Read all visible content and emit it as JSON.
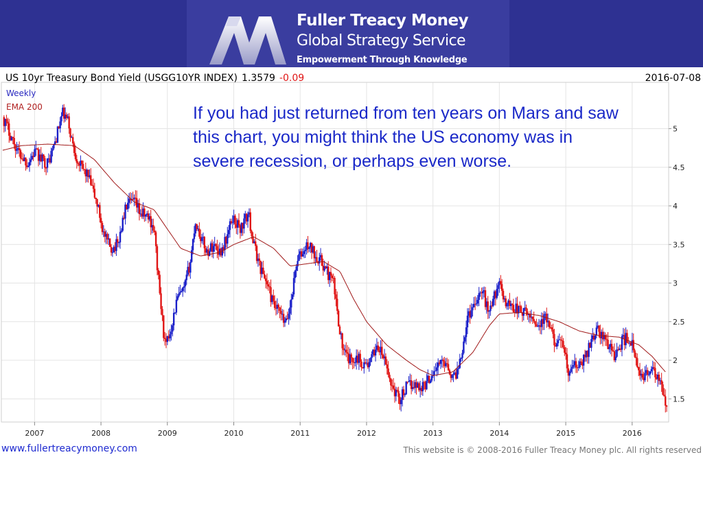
{
  "banner": {
    "brand_name": "Fuller Treacy Money",
    "service_name": "Global Strategy Service",
    "tagline": "Empowerment Through Knowledge",
    "logo_icon": "fuller-treacy-m-logo",
    "colors": {
      "background": "#2e3192",
      "panel": "#3a3d9f",
      "text": "#ffffff"
    }
  },
  "chart_header": {
    "instrument": "US 10yr Treasury Bond Yield (USGG10YR INDEX)",
    "last_value": "1.3579",
    "change": "-0.09",
    "date": "2016-07-08"
  },
  "annotation": "If you had just returned from ten years on Mars and saw this chart, you might think the US economy was in severe recession, or perhaps even worse.",
  "footer": {
    "website": "www.fullertreacymoney.com",
    "copyright": "This website is © 2008-2016 Fuller Treacy Money plc. All rights reserved"
  },
  "chart_data": {
    "type": "line",
    "style": "weekly candlesticks",
    "title": "US 10yr Treasury Bond Yield (USGG10YR INDEX)",
    "legend": [
      "Weekly",
      "EMA 200"
    ],
    "legend_position": "top-left",
    "xlabel": "",
    "ylabel": "",
    "x_ticks": [
      "2007",
      "2008",
      "2009",
      "2010",
      "2011",
      "2012",
      "2013",
      "2014",
      "2015",
      "2016"
    ],
    "y_ticks": [
      "1.5",
      "2",
      "2.5",
      "3",
      "3.5",
      "4",
      "4.5",
      "5"
    ],
    "xlim": [
      2006.5,
      2016.55
    ],
    "ylim": [
      1.2,
      5.6
    ],
    "grid": true,
    "colors": {
      "up": "#1a1fc9",
      "down": "#e01414",
      "ema": "#a01818",
      "grid": "#e4e4e4"
    },
    "price_anchors": [
      [
        2006.52,
        5.15
      ],
      [
        2006.6,
        5.0
      ],
      [
        2006.75,
        4.7
      ],
      [
        2006.9,
        4.55
      ],
      [
        2007.0,
        4.7
      ],
      [
        2007.1,
        4.6
      ],
      [
        2007.2,
        4.55
      ],
      [
        2007.3,
        4.8
      ],
      [
        2007.42,
        5.2
      ],
      [
        2007.5,
        5.1
      ],
      [
        2007.6,
        4.7
      ],
      [
        2007.7,
        4.5
      ],
      [
        2007.8,
        4.4
      ],
      [
        2007.95,
        4.0
      ],
      [
        2008.05,
        3.6
      ],
      [
        2008.15,
        3.45
      ],
      [
        2008.25,
        3.5
      ],
      [
        2008.38,
        4.0
      ],
      [
        2008.5,
        4.05
      ],
      [
        2008.6,
        3.9
      ],
      [
        2008.72,
        3.85
      ],
      [
        2008.8,
        3.7
      ],
      [
        2008.87,
        3.0
      ],
      [
        2008.92,
        2.55
      ],
      [
        2008.97,
        2.15
      ],
      [
        2009.05,
        2.4
      ],
      [
        2009.15,
        2.8
      ],
      [
        2009.25,
        2.9
      ],
      [
        2009.35,
        3.3
      ],
      [
        2009.42,
        3.8
      ],
      [
        2009.5,
        3.6
      ],
      [
        2009.6,
        3.4
      ],
      [
        2009.7,
        3.5
      ],
      [
        2009.8,
        3.4
      ],
      [
        2009.9,
        3.6
      ],
      [
        2009.98,
        3.85
      ],
      [
        2010.1,
        3.7
      ],
      [
        2010.22,
        3.9
      ],
      [
        2010.3,
        3.5
      ],
      [
        2010.4,
        3.2
      ],
      [
        2010.5,
        3.0
      ],
      [
        2010.6,
        2.7
      ],
      [
        2010.7,
        2.6
      ],
      [
        2010.78,
        2.45
      ],
      [
        2010.85,
        2.7
      ],
      [
        2010.95,
        3.3
      ],
      [
        2011.05,
        3.4
      ],
      [
        2011.12,
        3.5
      ],
      [
        2011.2,
        3.4
      ],
      [
        2011.3,
        3.3
      ],
      [
        2011.4,
        3.15
      ],
      [
        2011.5,
        3.0
      ],
      [
        2011.58,
        2.5
      ],
      [
        2011.65,
        2.1
      ],
      [
        2011.75,
        2.0
      ],
      [
        2011.85,
        2.05
      ],
      [
        2011.95,
        1.95
      ],
      [
        2012.05,
        1.95
      ],
      [
        2012.15,
        2.2
      ],
      [
        2012.25,
        2.05
      ],
      [
        2012.35,
        1.75
      ],
      [
        2012.42,
        1.6
      ],
      [
        2012.5,
        1.5
      ],
      [
        2012.6,
        1.65
      ],
      [
        2012.7,
        1.7
      ],
      [
        2012.8,
        1.65
      ],
      [
        2012.9,
        1.7
      ],
      [
        2013.0,
        1.85
      ],
      [
        2013.1,
        1.95
      ],
      [
        2013.2,
        2.0
      ],
      [
        2013.3,
        1.75
      ],
      [
        2013.38,
        1.9
      ],
      [
        2013.45,
        2.2
      ],
      [
        2013.52,
        2.55
      ],
      [
        2013.6,
        2.7
      ],
      [
        2013.68,
        2.85
      ],
      [
        2013.75,
        2.9
      ],
      [
        2013.82,
        2.65
      ],
      [
        2013.9,
        2.75
      ],
      [
        2013.98,
        3.0
      ],
      [
        2014.1,
        2.75
      ],
      [
        2014.2,
        2.7
      ],
      [
        2014.3,
        2.65
      ],
      [
        2014.4,
        2.6
      ],
      [
        2014.5,
        2.55
      ],
      [
        2014.6,
        2.45
      ],
      [
        2014.7,
        2.55
      ],
      [
        2014.8,
        2.3
      ],
      [
        2014.9,
        2.2
      ],
      [
        2014.98,
        2.15
      ],
      [
        2015.05,
        1.75
      ],
      [
        2015.1,
        1.95
      ],
      [
        2015.2,
        1.9
      ],
      [
        2015.3,
        2.05
      ],
      [
        2015.4,
        2.3
      ],
      [
        2015.48,
        2.4
      ],
      [
        2015.55,
        2.3
      ],
      [
        2015.65,
        2.2
      ],
      [
        2015.75,
        2.05
      ],
      [
        2015.85,
        2.25
      ],
      [
        2015.93,
        2.3
      ],
      [
        2016.0,
        2.2
      ],
      [
        2016.05,
        2.0
      ],
      [
        2016.12,
        1.75
      ],
      [
        2016.2,
        1.85
      ],
      [
        2016.3,
        1.85
      ],
      [
        2016.4,
        1.75
      ],
      [
        2016.45,
        1.6
      ],
      [
        2016.5,
        1.45
      ],
      [
        2016.52,
        1.36
      ]
    ],
    "ema200_anchors": [
      [
        2006.52,
        4.72
      ],
      [
        2006.8,
        4.78
      ],
      [
        2007.2,
        4.8
      ],
      [
        2007.6,
        4.78
      ],
      [
        2007.9,
        4.6
      ],
      [
        2008.2,
        4.3
      ],
      [
        2008.5,
        4.05
      ],
      [
        2008.8,
        3.95
      ],
      [
        2009.0,
        3.7
      ],
      [
        2009.2,
        3.45
      ],
      [
        2009.5,
        3.35
      ],
      [
        2009.8,
        3.4
      ],
      [
        2010.0,
        3.5
      ],
      [
        2010.3,
        3.6
      ],
      [
        2010.6,
        3.45
      ],
      [
        2010.85,
        3.22
      ],
      [
        2011.1,
        3.25
      ],
      [
        2011.35,
        3.28
      ],
      [
        2011.6,
        3.15
      ],
      [
        2011.8,
        2.8
      ],
      [
        2012.0,
        2.5
      ],
      [
        2012.3,
        2.2
      ],
      [
        2012.6,
        2.0
      ],
      [
        2012.8,
        1.88
      ],
      [
        2013.0,
        1.8
      ],
      [
        2013.3,
        1.85
      ],
      [
        2013.6,
        2.1
      ],
      [
        2013.85,
        2.45
      ],
      [
        2014.0,
        2.6
      ],
      [
        2014.3,
        2.62
      ],
      [
        2014.6,
        2.58
      ],
      [
        2014.9,
        2.5
      ],
      [
        2015.2,
        2.38
      ],
      [
        2015.5,
        2.32
      ],
      [
        2015.8,
        2.3
      ],
      [
        2016.1,
        2.2
      ],
      [
        2016.3,
        2.05
      ],
      [
        2016.5,
        1.85
      ]
    ]
  }
}
